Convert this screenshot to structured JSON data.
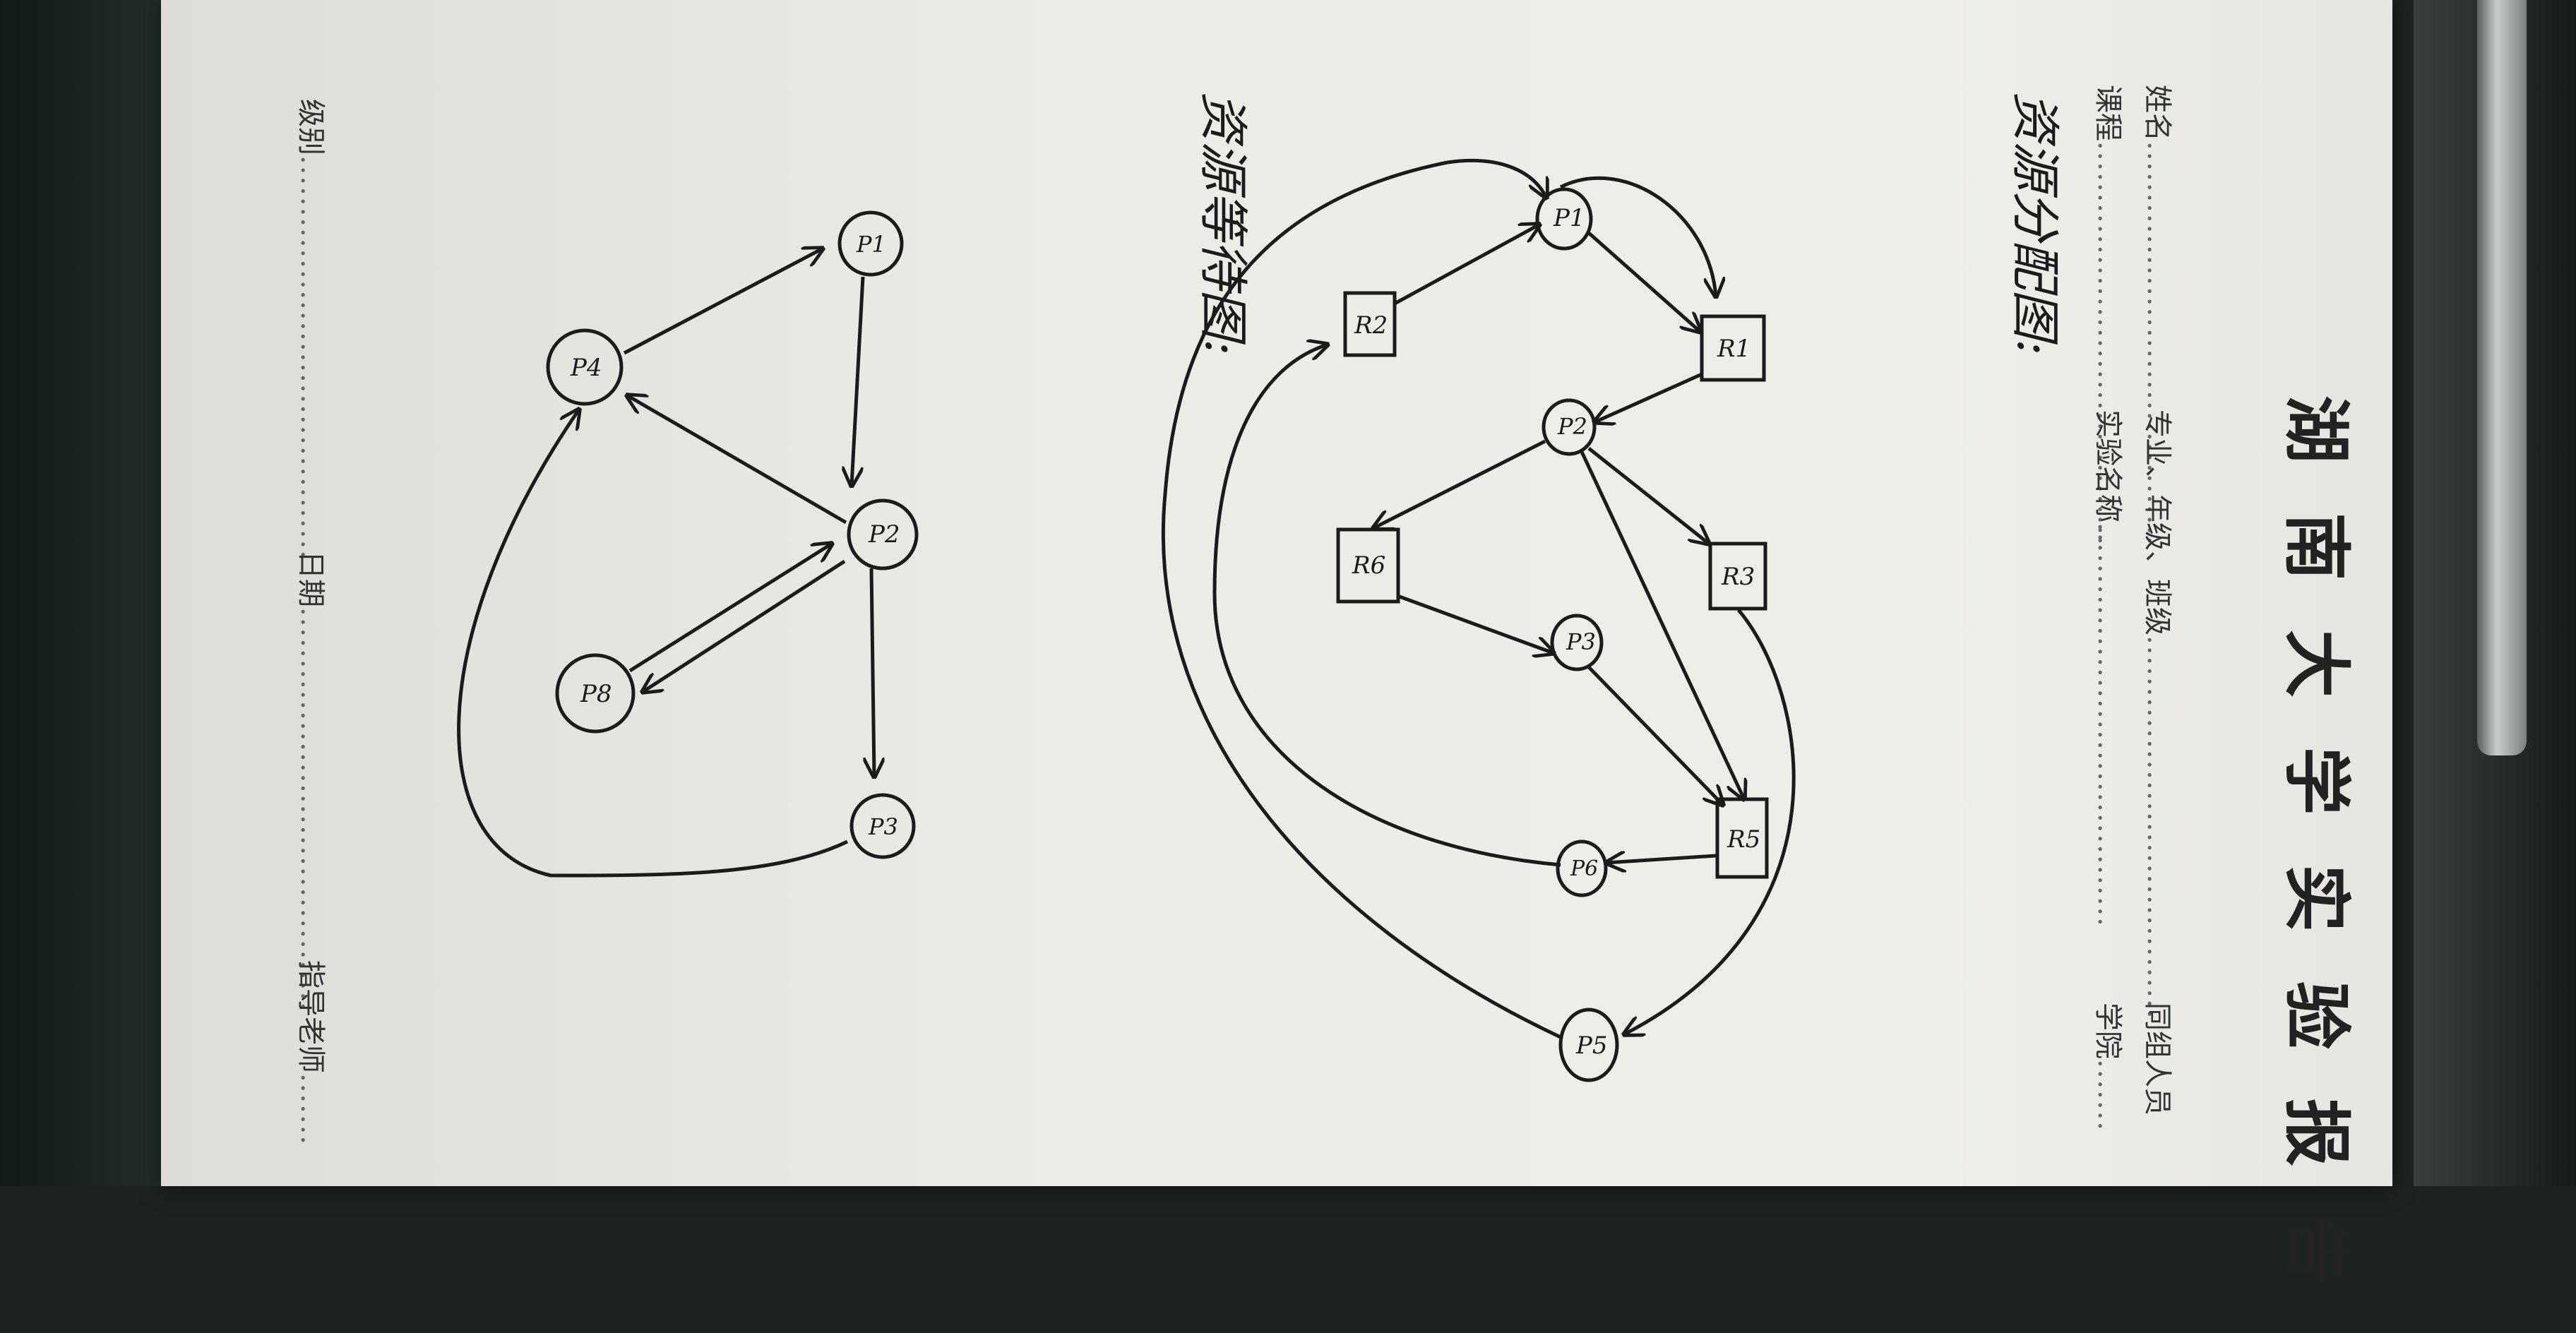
{
  "header": {
    "title": "湖南大学实验报告",
    "fields": {
      "name": "姓名",
      "major": "专业、年级、班级",
      "partner": "同组人员",
      "course": "课程",
      "experiment": "实验名称",
      "college": "学院",
      "level": "级别",
      "date": "日期",
      "advisor": "指导老师"
    }
  },
  "diagrams": {
    "allocation_title": "资源分配图:",
    "allocation_nodes": [
      "P1",
      "R1",
      "P2",
      "R3",
      "R2",
      "R6",
      "P3",
      "R5",
      "P6",
      "P5"
    ],
    "wait_title": "资源等待图:",
    "wait_nodes": [
      "P1",
      "P4",
      "P2",
      "P3",
      "P8"
    ]
  }
}
